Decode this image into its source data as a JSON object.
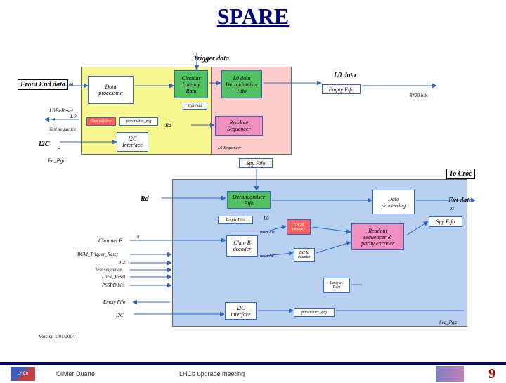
{
  "title": "SPARE",
  "footer": {
    "author": "Olivier Duarte",
    "meeting": "LHCb upgrade meeting",
    "page": "9",
    "logo1_text": "LHCb"
  },
  "version": "Version 1/01/2004",
  "top_labels": {
    "trigger_data": "Trigger data",
    "front_end": "Front End data",
    "l0_data": "L0 data",
    "to_croc": "To Croc",
    "evt_data": "Evt data"
  },
  "blocks": {
    "data_proc1": "Data\nprocessing",
    "circular_latency": "Circular\nLatency\nRam",
    "l0_derand": "L0 data\nDerandomiser\nFifo",
    "empty_fifo1": "Empty Fifo",
    "test_pattern": "Test pattern",
    "param_reg1": "parameter_reg",
    "cpt_add": "Cpt Add",
    "i2c_if1": "I2C\nInterface",
    "readout_seq": "Readout\nSequencer",
    "l0_seq": "L0-Sequencer",
    "spy_fifo1": "Spy Fifo",
    "data_proc2": "Data\nprocessing",
    "derand_fifo": "Derandomiser\nFifo",
    "empty_fifo2": "Empty Fifo",
    "evt_id": "Evt Id\ncounter",
    "chan_b": "Chan B\ndecoder",
    "bc_id": "BC Id\ncounter",
    "readout_seq2": "Readout\nsequencer &\nparity encoder",
    "spy_fifo2": "Spy Fifo",
    "latency_ram": "Latency\nRam",
    "i2c_if2": "I2C\ninterface",
    "param_reg2": "parameter_reg"
  },
  "side_labels": {
    "l0fe_reset": "L0FeReset",
    "l0": "L0",
    "rd": "Rd",
    "test_seq": "Test sequence",
    "i2c": "I2C",
    "fe_pga": "Fe_Pga",
    "rd2": "Rd",
    "l02": "L0",
    "channel_b": "Channel B",
    "bcid_trig": "BCId_Trigger_Reset",
    "l03": "L-0",
    "test_seq2": "Test sequence",
    "l0fe_reset2": "L0Fe_Reset",
    "psspd": "PSSPD bits",
    "empty_fifo3": "Empty Fifo",
    "i2c2": "I2C",
    "reset_evt": "reset Evt",
    "reset_bc": "reset BC",
    "seq_pga": "Seq_Pga",
    "bits40": "8*20 bits",
    "n48": "48",
    "n4": "4",
    "n2": "2",
    "n8": "8",
    "n23": "23"
  }
}
